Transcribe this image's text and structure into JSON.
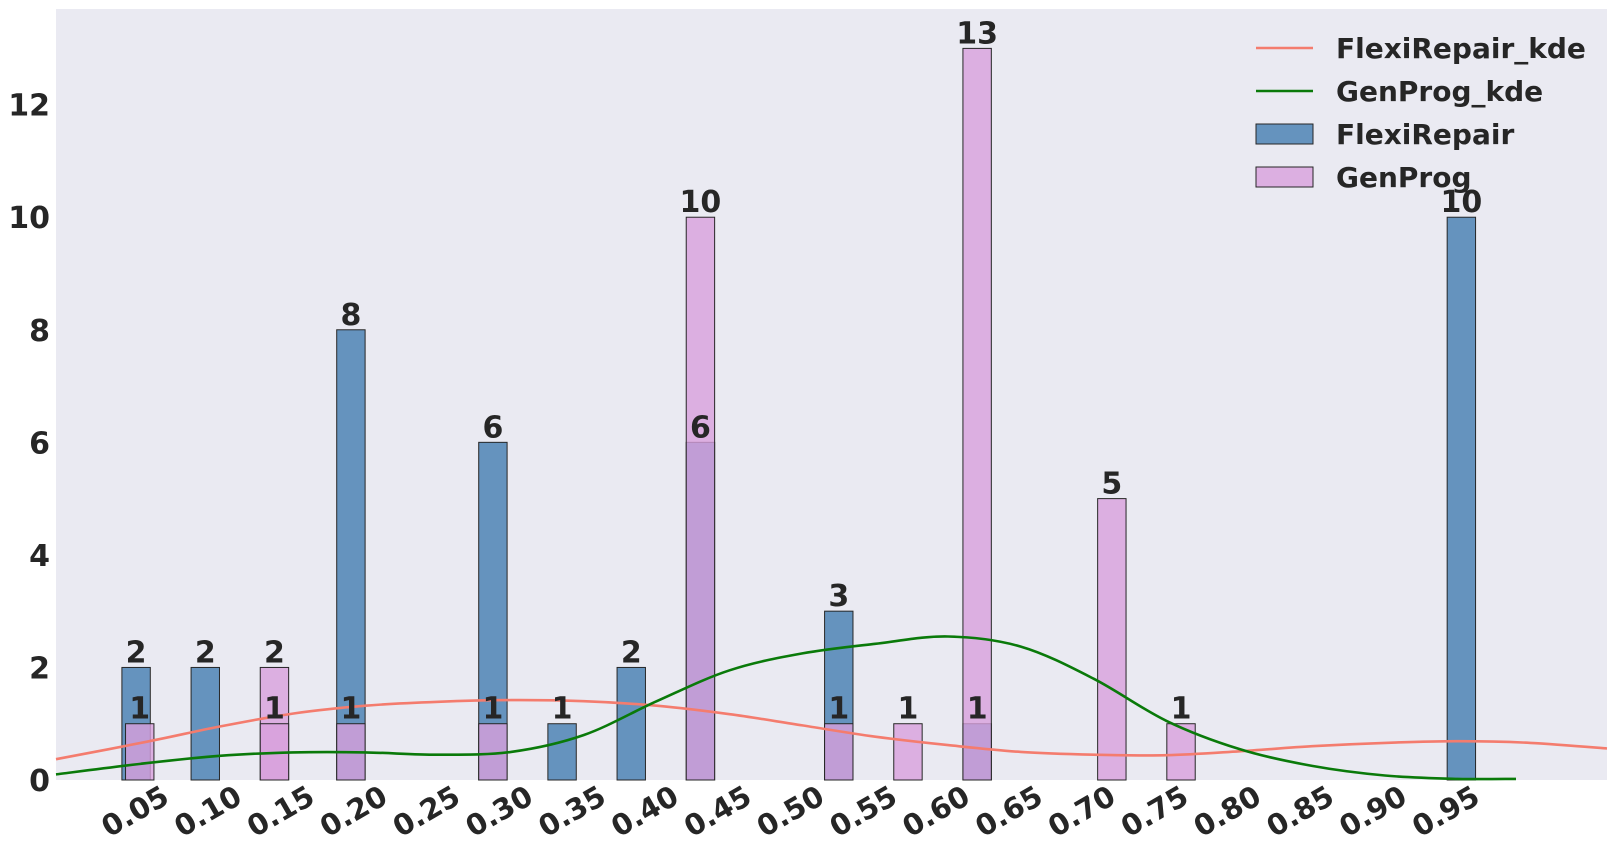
{
  "chart_data": {
    "type": "bar",
    "title": "",
    "xlabel": "",
    "ylabel": "",
    "xlim": [
      -0.0125,
      1.0525
    ],
    "ylim": [
      0,
      13.7
    ],
    "x_ticks": [
      "0.05",
      "0.10",
      "0.15",
      "0.20",
      "0.25",
      "0.30",
      "0.35",
      "0.40",
      "0.45",
      "0.50",
      "0.55",
      "0.60",
      "0.65",
      "0.70",
      "0.75",
      "0.80",
      "0.85",
      "0.90",
      "0.95"
    ],
    "y_ticks": [
      "0",
      "2",
      "4",
      "6",
      "8",
      "10",
      "12"
    ],
    "grid": false,
    "legend_position": "top-right",
    "bar_series": [
      {
        "name": "FlexiRepair",
        "color": "#4e84b5",
        "points": [
          {
            "x": 0.0425,
            "y": 2
          },
          {
            "x": 0.09,
            "y": 2
          },
          {
            "x": 0.19,
            "y": 8
          },
          {
            "x": 0.2875,
            "y": 6
          },
          {
            "x": 0.335,
            "y": 1
          },
          {
            "x": 0.3825,
            "y": 2
          },
          {
            "x": 0.43,
            "y": 6
          },
          {
            "x": 0.525,
            "y": 3
          },
          {
            "x": 0.62,
            "y": 1
          },
          {
            "x": 0.9525,
            "y": 10
          }
        ]
      },
      {
        "name": "GenProg",
        "color": "#d8a0dc",
        "points": [
          {
            "x": 0.045,
            "y": 1
          },
          {
            "x": 0.1375,
            "y": 2
          },
          {
            "x": 0.1375,
            "y": 1
          },
          {
            "x": 0.19,
            "y": 1
          },
          {
            "x": 0.2875,
            "y": 1
          },
          {
            "x": 0.43,
            "y": 10
          },
          {
            "x": 0.525,
            "y": 1
          },
          {
            "x": 0.5725,
            "y": 1
          },
          {
            "x": 0.62,
            "y": 13
          },
          {
            "x": 0.7125,
            "y": 5
          },
          {
            "x": 0.76,
            "y": 1
          }
        ]
      }
    ],
    "line_series": [
      {
        "name": "FlexiRepair_kde",
        "color": "#f47c6e",
        "points": [
          [
            -0.0125,
            0.37
          ],
          [
            0.05,
            0.68
          ],
          [
            0.1,
            0.95
          ],
          [
            0.15,
            1.18
          ],
          [
            0.2,
            1.32
          ],
          [
            0.25,
            1.39
          ],
          [
            0.3,
            1.42
          ],
          [
            0.35,
            1.4
          ],
          [
            0.4,
            1.32
          ],
          [
            0.45,
            1.17
          ],
          [
            0.5,
            0.97
          ],
          [
            0.55,
            0.77
          ],
          [
            0.6,
            0.62
          ],
          [
            0.65,
            0.5
          ],
          [
            0.7,
            0.45
          ],
          [
            0.75,
            0.44
          ],
          [
            0.8,
            0.51
          ],
          [
            0.85,
            0.6
          ],
          [
            0.9,
            0.66
          ],
          [
            0.95,
            0.69
          ],
          [
            1.0,
            0.66
          ],
          [
            1.0525,
            0.56
          ]
        ]
      },
      {
        "name": "GenProg_kde",
        "color": "#0a7a0a",
        "points": [
          [
            -0.0125,
            0.1
          ],
          [
            0.05,
            0.3
          ],
          [
            0.1,
            0.43
          ],
          [
            0.15,
            0.49
          ],
          [
            0.2,
            0.49
          ],
          [
            0.25,
            0.45
          ],
          [
            0.3,
            0.5
          ],
          [
            0.35,
            0.8
          ],
          [
            0.4,
            1.4
          ],
          [
            0.45,
            1.95
          ],
          [
            0.5,
            2.25
          ],
          [
            0.55,
            2.42
          ],
          [
            0.6,
            2.55
          ],
          [
            0.65,
            2.37
          ],
          [
            0.7,
            1.8
          ],
          [
            0.75,
            1.05
          ],
          [
            0.8,
            0.55
          ],
          [
            0.85,
            0.25
          ],
          [
            0.9,
            0.08
          ],
          [
            0.95,
            0.02
          ],
          [
            0.99,
            0.02
          ]
        ]
      }
    ],
    "legend": {
      "entries": [
        {
          "name": "FlexiRepair_kde",
          "kind": "line",
          "color": "#f47c6e"
        },
        {
          "name": "GenProg_kde",
          "kind": "line",
          "color": "#0a7a0a"
        },
        {
          "name": "FlexiRepair",
          "kind": "patch",
          "color": "#4e84b5"
        },
        {
          "name": "GenProg",
          "kind": "patch",
          "color": "#d8a0dc"
        }
      ]
    },
    "colors": {
      "plot_background": "#eaeaf2",
      "bar_edge": "#262626",
      "text": "#262626"
    }
  }
}
